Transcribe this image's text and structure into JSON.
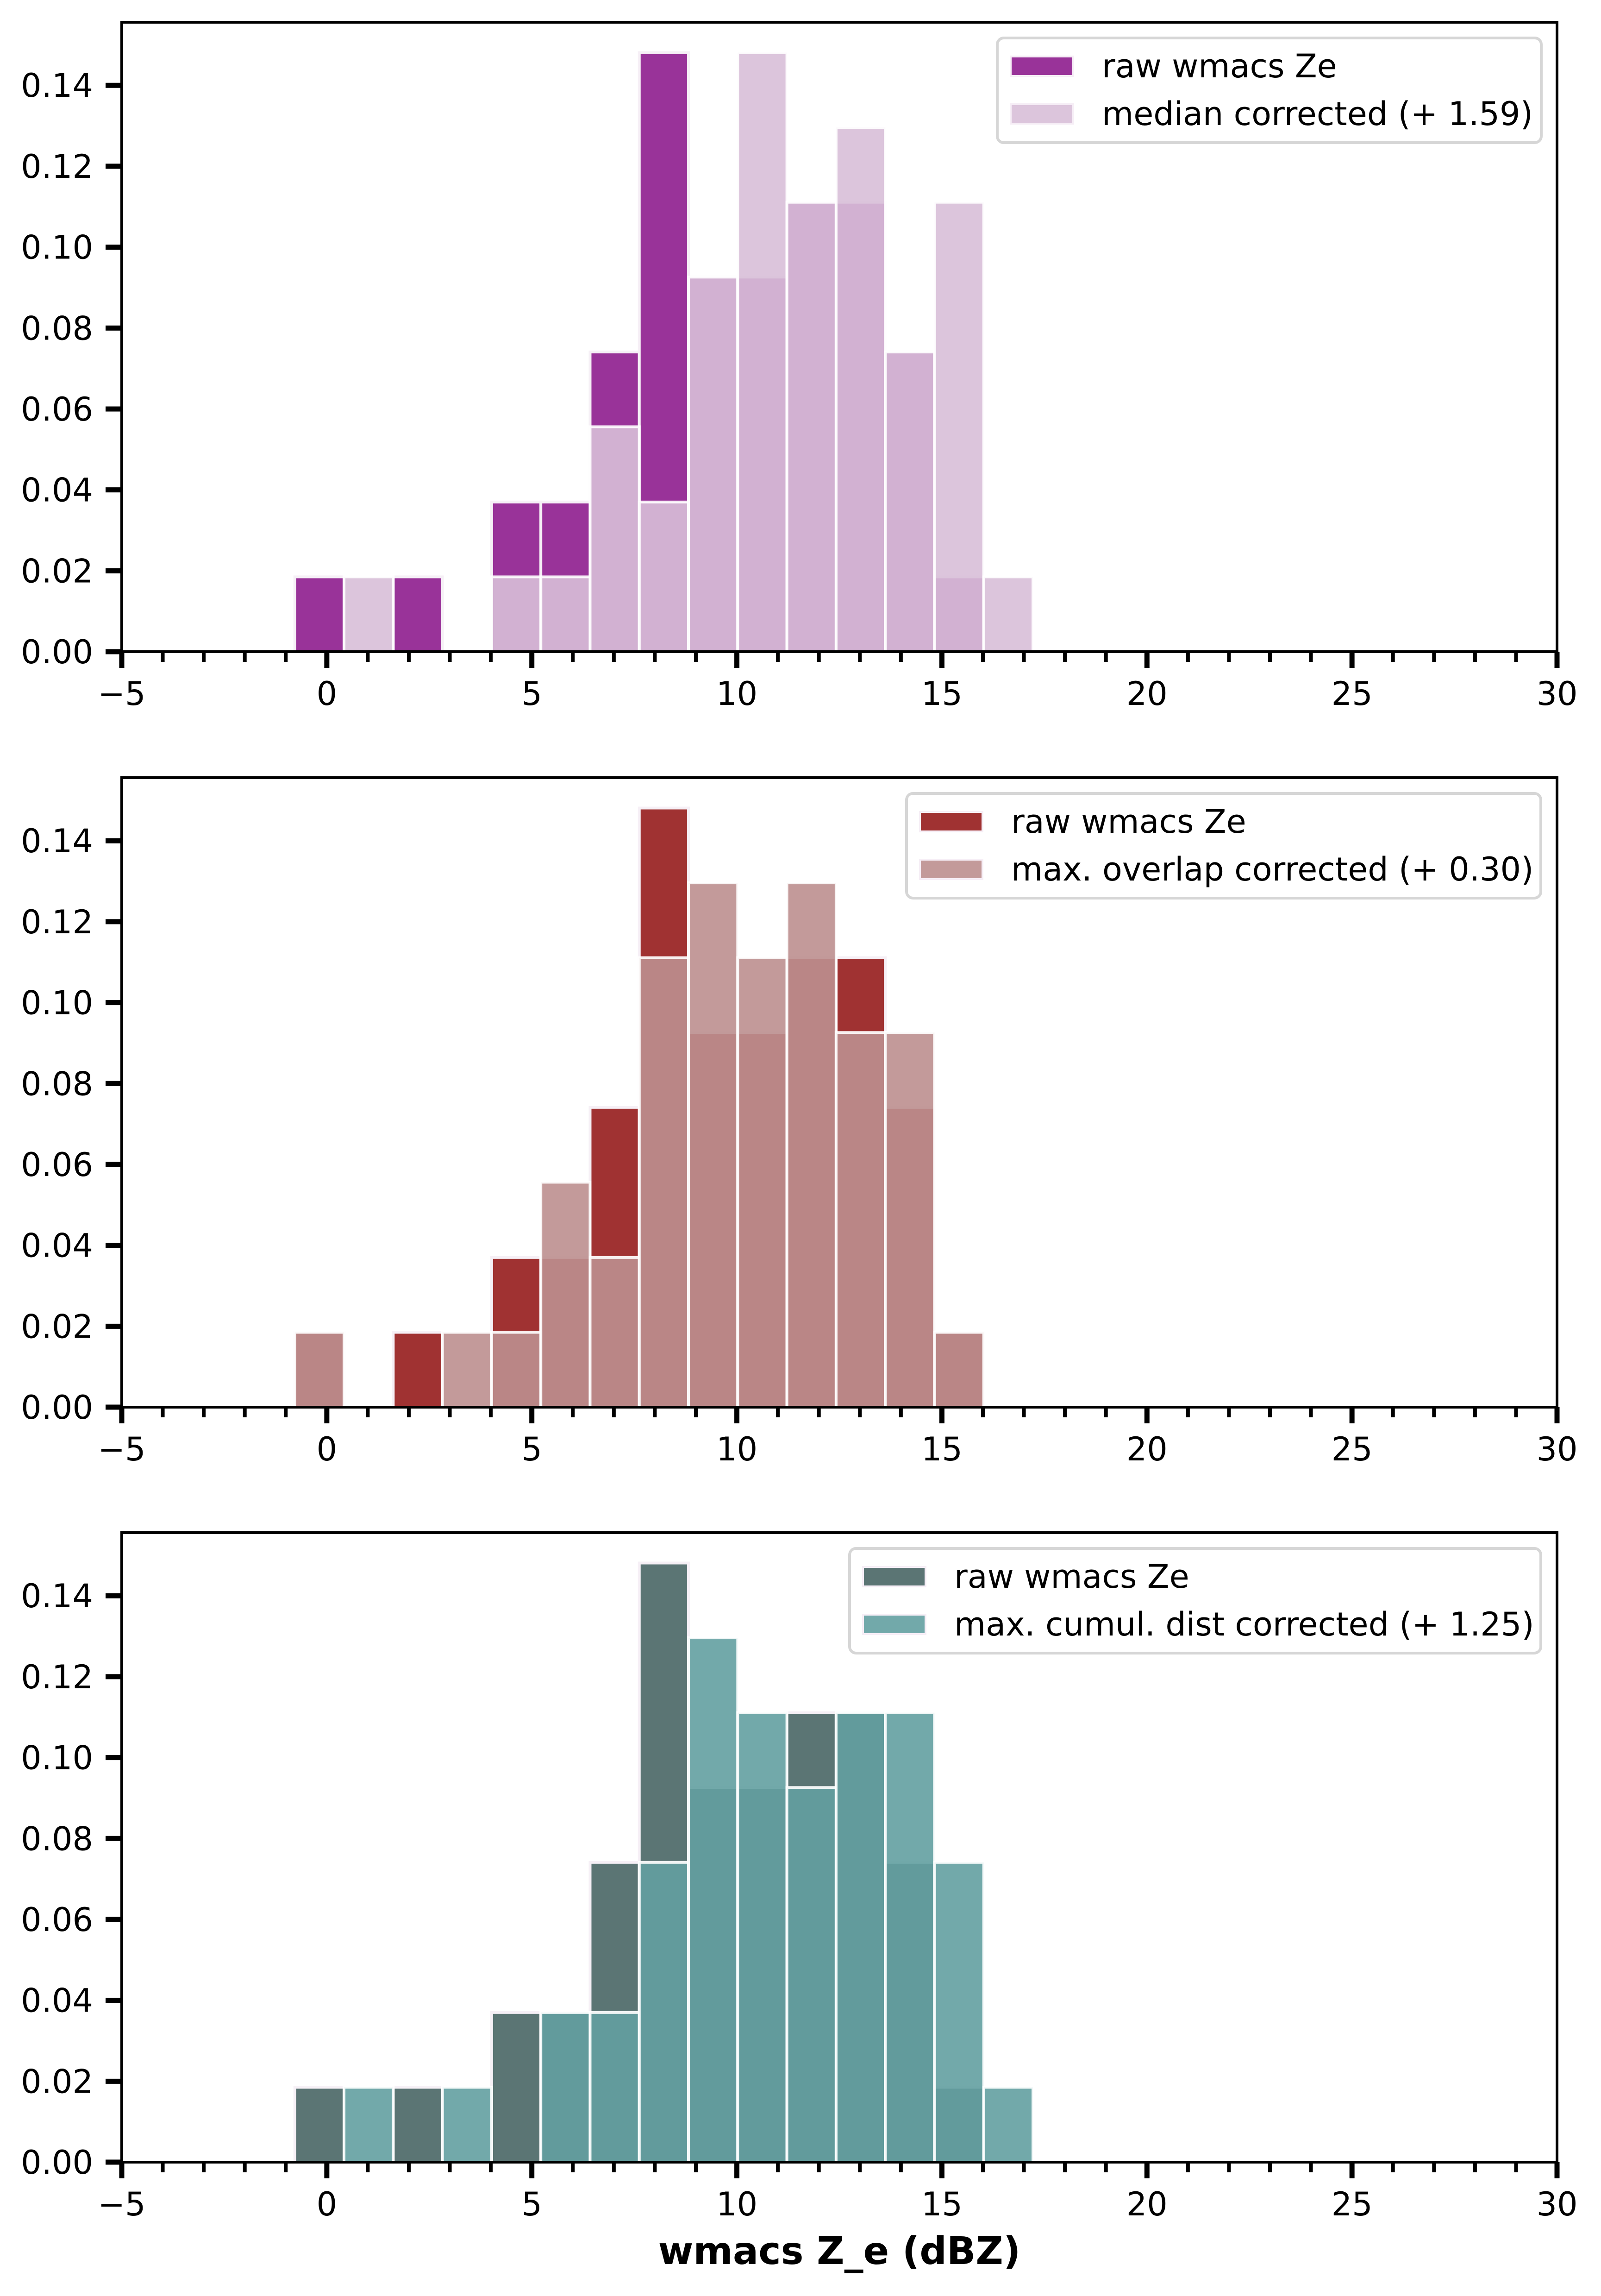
{
  "chart_data": [
    {
      "type": "bar",
      "subtype": "overlaid-histogram",
      "title": "",
      "xlabel": "",
      "ylabel": "",
      "xlim": [
        -5,
        30
      ],
      "ylim": [
        0,
        0.1556
      ],
      "xticks": [
        -5,
        0,
        5,
        10,
        15,
        20,
        25,
        30
      ],
      "xtick_labels": [
        "−5",
        "0",
        "5",
        "10",
        "15",
        "20",
        "25",
        "30"
      ],
      "yticks": [
        0,
        0.02,
        0.04,
        0.06,
        0.08,
        0.1,
        0.12,
        0.14
      ],
      "ytick_labels": [
        "0.00",
        "0.02",
        "0.04",
        "0.06",
        "0.08",
        "0.10",
        "0.12",
        "0.14"
      ],
      "bin_edges": [
        -0.78,
        0.42,
        1.62,
        2.82,
        4.02,
        5.22,
        6.42,
        7.62,
        8.82,
        10.02,
        11.22,
        12.42,
        13.62,
        14.82,
        16.02,
        17.22
      ],
      "legend_position": "top-right",
      "series": [
        {
          "name": "raw wmacs Ze",
          "color": "#993399",
          "values": [
            0.0185,
            0,
            0.0185,
            0,
            0.037,
            0.037,
            0.0741,
            0.1481,
            0.0926,
            0.0926,
            0.1111,
            0.1111,
            0.0741,
            0.0185,
            0
          ]
        },
        {
          "name": "median corrected (+ 1.59)",
          "color": "#D8BFD8",
          "overlap_color": "#D2AFD1",
          "values": [
            0,
            0.0185,
            0,
            0,
            0.0185,
            0.0185,
            0.0556,
            0.037,
            0.0926,
            0.1481,
            0.1111,
            0.1296,
            0.0741,
            0.1111,
            0.0185
          ]
        }
      ]
    },
    {
      "type": "bar",
      "subtype": "overlaid-histogram",
      "title": "",
      "xlabel": "",
      "ylabel": "",
      "xlim": [
        -5,
        30
      ],
      "ylim": [
        0,
        0.1556
      ],
      "xticks": [
        -5,
        0,
        5,
        10,
        15,
        20,
        25,
        30
      ],
      "xtick_labels": [
        "−5",
        "0",
        "5",
        "10",
        "15",
        "20",
        "25",
        "30"
      ],
      "yticks": [
        0,
        0.02,
        0.04,
        0.06,
        0.08,
        0.1,
        0.12,
        0.14
      ],
      "ytick_labels": [
        "0.00",
        "0.02",
        "0.04",
        "0.06",
        "0.08",
        "0.10",
        "0.12",
        "0.14"
      ],
      "bin_edges": [
        -0.78,
        0.42,
        1.62,
        2.82,
        4.02,
        5.22,
        6.42,
        7.62,
        8.82,
        10.02,
        11.22,
        12.42,
        13.62,
        14.82,
        16.02,
        17.22
      ],
      "legend_position": "top-right",
      "series": [
        {
          "name": "raw wmacs Ze",
          "color": "#A03232",
          "values": [
            0.0185,
            0,
            0.0185,
            0,
            0.037,
            0.037,
            0.0741,
            0.1481,
            0.0926,
            0.0926,
            0.1111,
            0.1111,
            0.0741,
            0.0185,
            0
          ]
        },
        {
          "name": "max. overlap corrected (+ 0.30)",
          "color": "#BC8F8F",
          "overlap_color": "#B88886",
          "values": [
            0.0185,
            0,
            0,
            0.0185,
            0.0185,
            0.0556,
            0.037,
            0.1111,
            0.1296,
            0.1111,
            0.1296,
            0.0926,
            0.0926,
            0.0185,
            0
          ]
        }
      ]
    },
    {
      "type": "bar",
      "subtype": "overlaid-histogram",
      "title": "",
      "xlabel": "wmacs Z_e (dBZ)",
      "ylabel": "",
      "xlim": [
        -5,
        30
      ],
      "ylim": [
        0,
        0.1556
      ],
      "xticks": [
        -5,
        0,
        5,
        10,
        15,
        20,
        25,
        30
      ],
      "xtick_labels": [
        "−5",
        "0",
        "5",
        "10",
        "15",
        "20",
        "25",
        "30"
      ],
      "yticks": [
        0,
        0.02,
        0.04,
        0.06,
        0.08,
        0.1,
        0.12,
        0.14
      ],
      "ytick_labels": [
        "0.00",
        "0.02",
        "0.04",
        "0.06",
        "0.08",
        "0.10",
        "0.12",
        "0.14"
      ],
      "bin_edges": [
        -0.78,
        0.42,
        1.62,
        2.82,
        4.02,
        5.22,
        6.42,
        7.62,
        8.82,
        10.02,
        11.22,
        12.42,
        13.62,
        14.82,
        16.02,
        17.22
      ],
      "legend_position": "top-right",
      "series": [
        {
          "name": "raw wmacs Ze",
          "color": "#5B7574",
          "values": [
            0.0185,
            0,
            0.0185,
            0,
            0.037,
            0.037,
            0.0741,
            0.1481,
            0.0926,
            0.0926,
            0.1111,
            0.1111,
            0.0741,
            0.0185,
            0
          ]
        },
        {
          "name": "max. cumul. dist corrected (+ 1.25)",
          "color": "#63A0A1",
          "overlap_color": "#5E9A9A",
          "values": [
            0,
            0.0185,
            0,
            0.0185,
            0,
            0.037,
            0.037,
            0.0741,
            0.1296,
            0.1111,
            0.0926,
            0.1111,
            0.1111,
            0.0741,
            0.0185
          ]
        }
      ]
    }
  ]
}
